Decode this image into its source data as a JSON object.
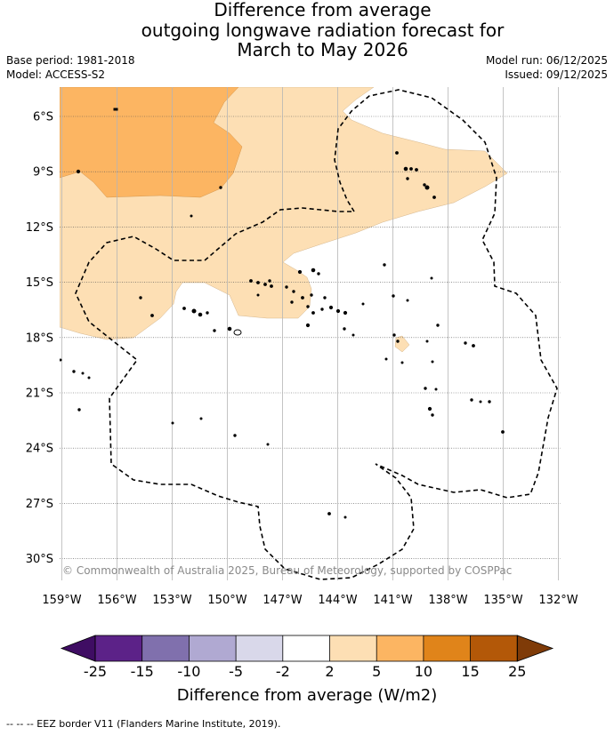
{
  "title": {
    "line1": "Difference from average",
    "line2": "outgoing longwave radiation forecast for",
    "line3": "March to May 2026"
  },
  "meta": {
    "base_period": "Base period: 1981-2018",
    "model": "Model: ACCESS-S2",
    "model_run": "Model run: 06/12/2025",
    "issued": "Issued: 09/12/2025"
  },
  "map": {
    "lat_labels": [
      "6°S",
      "9°S",
      "12°S",
      "15°S",
      "18°S",
      "21°S",
      "24°S",
      "27°S",
      "30°S"
    ],
    "lon_labels": [
      "159°W",
      "156°W",
      "153°W",
      "150°W",
      "147°W",
      "144°W",
      "141°W",
      "138°W",
      "135°W",
      "132°W"
    ],
    "copyright": "© Commonwealth of Australia 2025, Bureau of Meteorology, supported by COSPPac",
    "colors": {
      "light_orange": "#fddfb4",
      "mid_orange": "#fcb562",
      "land": "#000000",
      "eez": "#000000"
    }
  },
  "colorbar": {
    "tick_labels": [
      "-25",
      "-15",
      "-10",
      "-5",
      "-2",
      "2",
      "5",
      "10",
      "15",
      "25"
    ],
    "colors": [
      "#3f0d63",
      "#5c2288",
      "#8070ad",
      "#b0a9d2",
      "#d9d8ea",
      "#ffffff",
      "#fddfb4",
      "#fcb562",
      "#e0841a",
      "#b35808",
      "#7f3b08"
    ],
    "label": "Difference from average (W/m2)"
  },
  "footer": {
    "eez_legend": "-- -- -- EEZ border V11 (Flanders Marine Institute, 2019)."
  }
}
